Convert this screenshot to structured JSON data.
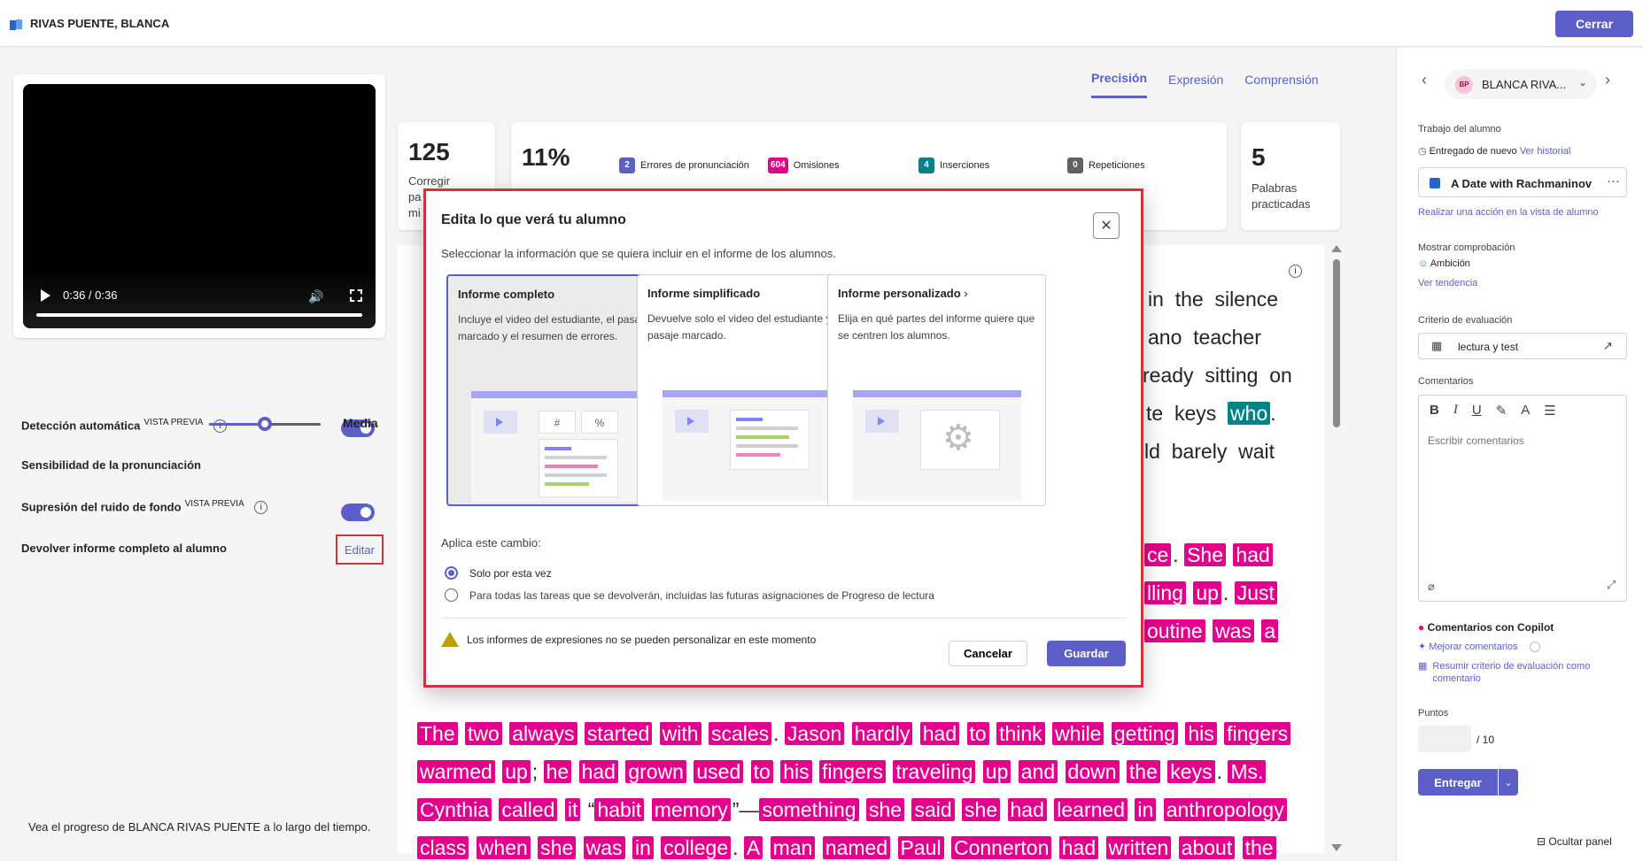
{
  "header": {
    "student_name": "RIVAS PUENTE, BLANCA",
    "close_label": "Cerrar"
  },
  "video": {
    "time": "0:36 / 0:36",
    "progress": 1.0
  },
  "settings": {
    "auto_detect_label": "Detección automática",
    "auto_detect_badge": "VISTA PREVIA",
    "pronunciation_label": "Sensibilidad de la pronunciación",
    "pronunciation_value": "Media",
    "pronunciation_level": 0.5,
    "noise_label": "Supresión del ruido de fondo",
    "noise_badge": "VISTA PREVIA",
    "return_report_label": "Devolver informe completo al alumno",
    "edit_label": "Editar",
    "progress_note": "Vea el progreso de BLANCA RIVAS PUENTE a lo largo del tiempo."
  },
  "tabs": [
    {
      "label": "Precisión"
    },
    {
      "label": "Expresión"
    },
    {
      "label": "Comprensión"
    }
  ],
  "stats": {
    "wcpm_value": "125",
    "wcpm_label_1": "Corregir",
    "wcpm_label_2": "pa",
    "wcpm_label_3": "mi",
    "accuracy_value": "11%",
    "errors": [
      {
        "count": "2",
        "label": "Errores de pronunciación",
        "color": "#5b5fc7"
      },
      {
        "count": "604",
        "label": "Omisiones",
        "color": "#e3008c"
      },
      {
        "count": "4",
        "label": "Inserciones",
        "color": "#038387"
      },
      {
        "count": "0",
        "label": "Repeticiones",
        "color": "#616161"
      }
    ],
    "practiced_value": "5",
    "practiced_label_1": "Palabras",
    "practiced_label_2": "practicadas"
  },
  "passage": {
    "info": "i",
    "line1": [
      "in",
      "the",
      "silence"
    ],
    "line2": [
      "ano",
      "teacher"
    ],
    "line3": [
      "ready",
      "sitting",
      "on"
    ],
    "line4_plain": [
      "te",
      "keys"
    ],
    "line4_teal": "who",
    "line5": [
      "ld",
      "barely",
      "wait"
    ],
    "line6": [
      "ce",
      "She",
      "had"
    ],
    "line7": [
      "lling",
      "up",
      "Just"
    ],
    "line8": [
      "outine",
      "was",
      "a"
    ],
    "line9": [
      "The",
      "two",
      "always",
      "started",
      "with",
      "scales",
      "Jason",
      "hardly",
      "had",
      "to",
      "think",
      "while",
      "getting",
      "his",
      "fingers"
    ],
    "line10": [
      "warmed",
      "up",
      "he",
      "had",
      "grown",
      "used",
      "to",
      "his",
      "fingers",
      "traveling",
      "up",
      "and",
      "down",
      "the",
      "keys",
      "Ms."
    ],
    "line11": [
      "Cynthia",
      "called",
      "it",
      "habit",
      "memory",
      "something",
      "she",
      "said",
      "she",
      "had",
      "learned",
      "in",
      "anthropology"
    ],
    "line12": [
      "class",
      "when",
      "she",
      "was",
      "in",
      "college",
      "A",
      "man",
      "named",
      "Paul",
      "Connerton",
      "had",
      "written",
      "about",
      "the"
    ]
  },
  "right_panel": {
    "chip_initials": "BP",
    "chip_name": "BLANCA RIVA...",
    "work_label": "Trabajo del alumno",
    "status": "Entregado de nuevo",
    "history_link": "Ver historial",
    "assignment_title": "A Date with Rachmaninov",
    "action_link": "Realizar una acción en la vista de alumno",
    "checkin_label": "Mostrar comprobación",
    "checkin_value": "Ambición",
    "trend_link": "Ver tendencia",
    "criteria_label": "Criterio de evaluación",
    "criteria_value": "lectura y test",
    "comments_label": "Comentarios",
    "comments_placeholder": "Escribir comentarios",
    "copilot_label": "Comentarios con Copilot",
    "improve_link": "Mejorar comentarios",
    "summarize_link": "Resumir criterio de evaluación como comentario",
    "points_label": "Puntos",
    "points_max": "/ 10",
    "submit_label": "Entregar",
    "hide_panel": "Ocultar panel"
  },
  "modal": {
    "title": "Edita lo que verá tu alumno",
    "subtitle": "Seleccionar la información que se quiera incluir en el informe de los alumnos.",
    "options": [
      {
        "title": "Informe completo",
        "desc": "Incluye el video del estudiante, el pasaje marcado y el resumen de errores."
      },
      {
        "title": "Informe simplificado",
        "desc": "Devuelve solo el video del estudiante y el pasaje marcado."
      },
      {
        "title": "Informe personalizado",
        "desc": "Elija en qué partes del informe quiere que se centren los alumnos."
      }
    ],
    "illus_hash": "#",
    "illus_percent": "%",
    "apply_label": "Aplica este cambio:",
    "radio_once": "Solo por esta vez",
    "radio_all": "Para todas las tareas que se devolverán, incluidas las futuras asignaciones de Progreso de lectura",
    "warning": "Los informes de expresiones no se pueden personalizar en este momento",
    "cancel_label": "Cancelar",
    "save_label": "Guardar"
  }
}
